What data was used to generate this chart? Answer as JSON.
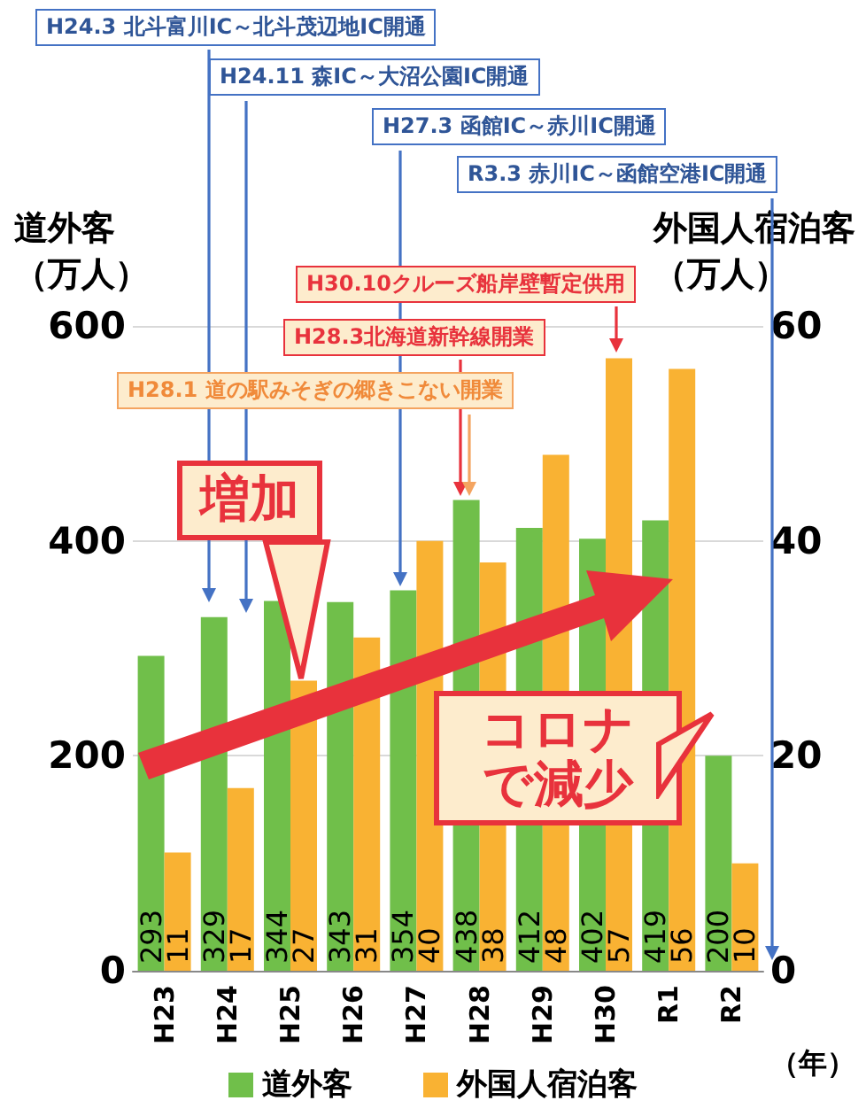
{
  "chart_data": {
    "type": "bar",
    "categories": [
      "H23",
      "H24",
      "H25",
      "H26",
      "H27",
      "H28",
      "H29",
      "H30",
      "R1",
      "R2"
    ],
    "series": [
      {
        "name": "道外客",
        "color": "#70bf4a",
        "values": [
          293,
          329,
          344,
          343,
          354,
          438,
          412,
          402,
          419,
          200
        ]
      },
      {
        "name": "外国人宿泊客",
        "color": "#f9b233",
        "axis": "y2",
        "values": [
          11,
          17,
          27,
          31,
          40,
          38,
          48,
          57,
          56,
          10
        ]
      }
    ],
    "ylabel": "道外客（万人）",
    "y2label": "外国人宿泊客（万人）",
    "xlabel": "（年）",
    "ylim": [
      0,
      600
    ],
    "yticks": [
      0,
      200,
      400,
      600
    ],
    "y2lim": [
      0,
      60
    ],
    "y2ticks": [
      0,
      20,
      40,
      60
    ],
    "grid": "y",
    "legend": "bottom",
    "data_labels": true,
    "annotations": [
      "H24.3 北斗富川IC～北斗茂辺地IC開通",
      "H24.11 森IC～大沼公園IC開通",
      "H27.3 函館IC～赤川IC開通",
      "R3.3 赤川IC～函館空港IC開通",
      "H30.10クルーズ船岸壁暫定供用",
      "H28.3北海道新幹線開業",
      "H28.1 道の駅みそぎの郷きこない開業",
      "増加",
      "コロナで減少"
    ]
  }
}
